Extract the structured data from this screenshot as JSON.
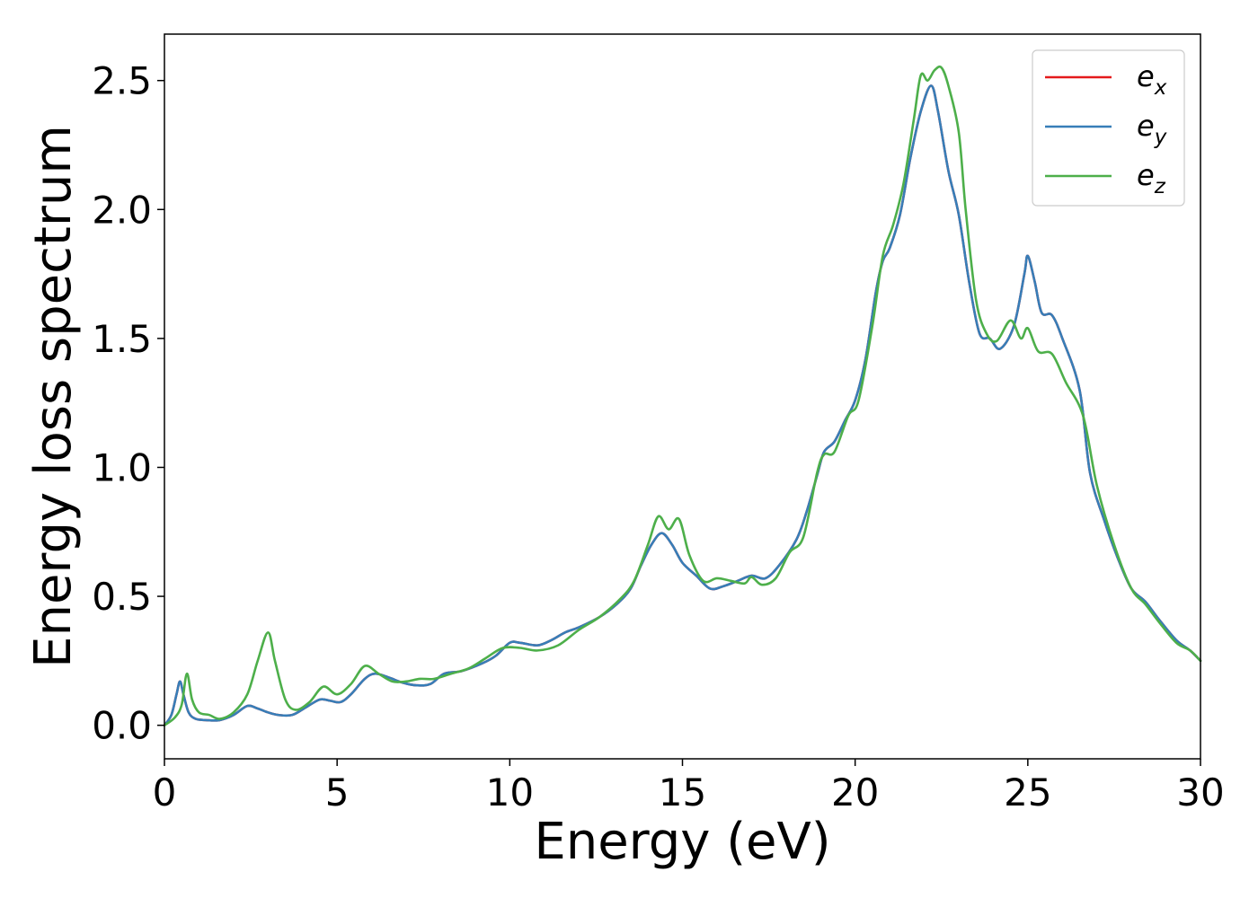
{
  "chart_data": {
    "type": "line",
    "xlabel": "Energy (eV)",
    "ylabel": "Energy loss spectrum",
    "xlim": [
      0,
      30
    ],
    "ylim": [
      -0.13,
      2.68
    ],
    "xticks": [
      0,
      5,
      10,
      15,
      20,
      25,
      30
    ],
    "yticks": [
      0.0,
      0.5,
      1.0,
      1.5,
      2.0,
      2.5
    ],
    "xtick_labels": [
      "0",
      "5",
      "10",
      "15",
      "20",
      "25",
      "30"
    ],
    "ytick_labels": [
      "0.0",
      "0.5",
      "1.0",
      "1.5",
      "2.0",
      "2.5"
    ],
    "grid": false,
    "legend_position": "top-right",
    "series": [
      {
        "name": "e_x",
        "legend_base": "e",
        "legend_sub": "x",
        "color": "#e41a1c",
        "points": [
          [
            0,
            0.0
          ],
          [
            0.2,
            0.04
          ],
          [
            0.35,
            0.12
          ],
          [
            0.45,
            0.17
          ],
          [
            0.55,
            0.12
          ],
          [
            0.7,
            0.05
          ],
          [
            0.9,
            0.025
          ],
          [
            1.2,
            0.02
          ],
          [
            1.6,
            0.02
          ],
          [
            2.0,
            0.04
          ],
          [
            2.4,
            0.075
          ],
          [
            2.7,
            0.065
          ],
          [
            3.0,
            0.05
          ],
          [
            3.3,
            0.04
          ],
          [
            3.7,
            0.04
          ],
          [
            4.1,
            0.07
          ],
          [
            4.5,
            0.1
          ],
          [
            4.8,
            0.095
          ],
          [
            5.1,
            0.09
          ],
          [
            5.4,
            0.12
          ],
          [
            5.8,
            0.18
          ],
          [
            6.1,
            0.2
          ],
          [
            6.5,
            0.185
          ],
          [
            6.9,
            0.165
          ],
          [
            7.3,
            0.155
          ],
          [
            7.7,
            0.16
          ],
          [
            8.1,
            0.2
          ],
          [
            8.6,
            0.21
          ],
          [
            9.2,
            0.24
          ],
          [
            9.6,
            0.27
          ],
          [
            10.0,
            0.32
          ],
          [
            10.3,
            0.32
          ],
          [
            10.8,
            0.31
          ],
          [
            11.2,
            0.33
          ],
          [
            11.6,
            0.36
          ],
          [
            12.0,
            0.38
          ],
          [
            12.6,
            0.42
          ],
          [
            13.1,
            0.47
          ],
          [
            13.5,
            0.53
          ],
          [
            13.8,
            0.62
          ],
          [
            14.1,
            0.7
          ],
          [
            14.4,
            0.745
          ],
          [
            14.7,
            0.7
          ],
          [
            15.0,
            0.63
          ],
          [
            15.4,
            0.58
          ],
          [
            15.8,
            0.53
          ],
          [
            16.2,
            0.54
          ],
          [
            16.6,
            0.56
          ],
          [
            17.0,
            0.58
          ],
          [
            17.4,
            0.57
          ],
          [
            17.8,
            0.62
          ],
          [
            18.3,
            0.72
          ],
          [
            18.6,
            0.83
          ],
          [
            18.9,
            0.97
          ],
          [
            19.1,
            1.06
          ],
          [
            19.4,
            1.1
          ],
          [
            19.7,
            1.18
          ],
          [
            20.0,
            1.26
          ],
          [
            20.3,
            1.42
          ],
          [
            20.6,
            1.68
          ],
          [
            20.8,
            1.8
          ],
          [
            21.0,
            1.85
          ],
          [
            21.3,
            1.98
          ],
          [
            21.6,
            2.2
          ],
          [
            21.9,
            2.38
          ],
          [
            22.2,
            2.48
          ],
          [
            22.4,
            2.38
          ],
          [
            22.7,
            2.15
          ],
          [
            23.0,
            1.98
          ],
          [
            23.3,
            1.72
          ],
          [
            23.6,
            1.52
          ],
          [
            23.9,
            1.5
          ],
          [
            24.2,
            1.46
          ],
          [
            24.6,
            1.55
          ],
          [
            24.9,
            1.75
          ],
          [
            25.0,
            1.82
          ],
          [
            25.2,
            1.72
          ],
          [
            25.4,
            1.6
          ],
          [
            25.7,
            1.59
          ],
          [
            26.0,
            1.5
          ],
          [
            26.5,
            1.3
          ],
          [
            26.8,
            0.98
          ],
          [
            27.2,
            0.8
          ],
          [
            27.6,
            0.65
          ],
          [
            28.0,
            0.53
          ],
          [
            28.4,
            0.48
          ],
          [
            28.8,
            0.41
          ],
          [
            29.3,
            0.33
          ],
          [
            29.7,
            0.29
          ],
          [
            30.0,
            0.25
          ]
        ]
      },
      {
        "name": "e_y",
        "legend_base": "e",
        "legend_sub": "y",
        "color": "#377eb8",
        "points": [
          [
            0,
            0.0
          ],
          [
            0.2,
            0.04
          ],
          [
            0.35,
            0.12
          ],
          [
            0.45,
            0.17
          ],
          [
            0.55,
            0.12
          ],
          [
            0.7,
            0.05
          ],
          [
            0.9,
            0.025
          ],
          [
            1.2,
            0.02
          ],
          [
            1.6,
            0.02
          ],
          [
            2.0,
            0.04
          ],
          [
            2.4,
            0.075
          ],
          [
            2.7,
            0.065
          ],
          [
            3.0,
            0.05
          ],
          [
            3.3,
            0.04
          ],
          [
            3.7,
            0.04
          ],
          [
            4.1,
            0.07
          ],
          [
            4.5,
            0.1
          ],
          [
            4.8,
            0.095
          ],
          [
            5.1,
            0.09
          ],
          [
            5.4,
            0.12
          ],
          [
            5.8,
            0.18
          ],
          [
            6.1,
            0.2
          ],
          [
            6.5,
            0.185
          ],
          [
            6.9,
            0.165
          ],
          [
            7.3,
            0.155
          ],
          [
            7.7,
            0.16
          ],
          [
            8.1,
            0.2
          ],
          [
            8.6,
            0.21
          ],
          [
            9.2,
            0.24
          ],
          [
            9.6,
            0.27
          ],
          [
            10.0,
            0.32
          ],
          [
            10.3,
            0.32
          ],
          [
            10.8,
            0.31
          ],
          [
            11.2,
            0.33
          ],
          [
            11.6,
            0.36
          ],
          [
            12.0,
            0.38
          ],
          [
            12.6,
            0.42
          ],
          [
            13.1,
            0.47
          ],
          [
            13.5,
            0.53
          ],
          [
            13.8,
            0.62
          ],
          [
            14.1,
            0.7
          ],
          [
            14.4,
            0.745
          ],
          [
            14.7,
            0.7
          ],
          [
            15.0,
            0.63
          ],
          [
            15.4,
            0.58
          ],
          [
            15.8,
            0.53
          ],
          [
            16.2,
            0.54
          ],
          [
            16.6,
            0.56
          ],
          [
            17.0,
            0.58
          ],
          [
            17.4,
            0.57
          ],
          [
            17.8,
            0.62
          ],
          [
            18.3,
            0.72
          ],
          [
            18.6,
            0.83
          ],
          [
            18.9,
            0.97
          ],
          [
            19.1,
            1.06
          ],
          [
            19.4,
            1.1
          ],
          [
            19.7,
            1.18
          ],
          [
            20.0,
            1.26
          ],
          [
            20.3,
            1.42
          ],
          [
            20.6,
            1.68
          ],
          [
            20.8,
            1.8
          ],
          [
            21.0,
            1.85
          ],
          [
            21.3,
            1.98
          ],
          [
            21.6,
            2.2
          ],
          [
            21.9,
            2.38
          ],
          [
            22.2,
            2.48
          ],
          [
            22.4,
            2.38
          ],
          [
            22.7,
            2.15
          ],
          [
            23.0,
            1.98
          ],
          [
            23.3,
            1.72
          ],
          [
            23.6,
            1.52
          ],
          [
            23.9,
            1.5
          ],
          [
            24.2,
            1.46
          ],
          [
            24.6,
            1.55
          ],
          [
            24.9,
            1.75
          ],
          [
            25.0,
            1.82
          ],
          [
            25.2,
            1.72
          ],
          [
            25.4,
            1.6
          ],
          [
            25.7,
            1.59
          ],
          [
            26.0,
            1.5
          ],
          [
            26.5,
            1.3
          ],
          [
            26.8,
            0.98
          ],
          [
            27.2,
            0.8
          ],
          [
            27.6,
            0.65
          ],
          [
            28.0,
            0.53
          ],
          [
            28.4,
            0.48
          ],
          [
            28.8,
            0.41
          ],
          [
            29.3,
            0.33
          ],
          [
            29.7,
            0.29
          ],
          [
            30.0,
            0.25
          ]
        ]
      },
      {
        "name": "e_z",
        "legend_base": "e",
        "legend_sub": "z",
        "color": "#4daf4a",
        "points": [
          [
            0,
            0.0
          ],
          [
            0.3,
            0.03
          ],
          [
            0.5,
            0.08
          ],
          [
            0.65,
            0.2
          ],
          [
            0.8,
            0.1
          ],
          [
            1.0,
            0.05
          ],
          [
            1.3,
            0.04
          ],
          [
            1.6,
            0.025
          ],
          [
            2.0,
            0.05
          ],
          [
            2.4,
            0.12
          ],
          [
            2.7,
            0.25
          ],
          [
            3.0,
            0.36
          ],
          [
            3.2,
            0.25
          ],
          [
            3.5,
            0.1
          ],
          [
            3.8,
            0.06
          ],
          [
            4.2,
            0.09
          ],
          [
            4.6,
            0.15
          ],
          [
            5.0,
            0.12
          ],
          [
            5.4,
            0.16
          ],
          [
            5.8,
            0.23
          ],
          [
            6.2,
            0.2
          ],
          [
            6.6,
            0.17
          ],
          [
            7.0,
            0.17
          ],
          [
            7.4,
            0.18
          ],
          [
            7.8,
            0.18
          ],
          [
            8.3,
            0.2
          ],
          [
            8.8,
            0.22
          ],
          [
            9.3,
            0.26
          ],
          [
            9.8,
            0.3
          ],
          [
            10.3,
            0.3
          ],
          [
            10.8,
            0.29
          ],
          [
            11.4,
            0.31
          ],
          [
            12.0,
            0.37
          ],
          [
            12.6,
            0.42
          ],
          [
            13.2,
            0.49
          ],
          [
            13.6,
            0.56
          ],
          [
            14.0,
            0.7
          ],
          [
            14.3,
            0.81
          ],
          [
            14.6,
            0.76
          ],
          [
            14.9,
            0.8
          ],
          [
            15.2,
            0.66
          ],
          [
            15.6,
            0.56
          ],
          [
            16.0,
            0.57
          ],
          [
            16.4,
            0.56
          ],
          [
            16.8,
            0.55
          ],
          [
            17.0,
            0.575
          ],
          [
            17.3,
            0.545
          ],
          [
            17.7,
            0.57
          ],
          [
            18.1,
            0.67
          ],
          [
            18.5,
            0.73
          ],
          [
            18.9,
            0.98
          ],
          [
            19.1,
            1.05
          ],
          [
            19.4,
            1.06
          ],
          [
            19.8,
            1.2
          ],
          [
            20.1,
            1.26
          ],
          [
            20.5,
            1.55
          ],
          [
            20.8,
            1.82
          ],
          [
            21.1,
            1.94
          ],
          [
            21.4,
            2.1
          ],
          [
            21.7,
            2.35
          ],
          [
            21.9,
            2.52
          ],
          [
            22.1,
            2.5
          ],
          [
            22.3,
            2.54
          ],
          [
            22.5,
            2.55
          ],
          [
            22.7,
            2.48
          ],
          [
            23.0,
            2.3
          ],
          [
            23.2,
            2.0
          ],
          [
            23.5,
            1.65
          ],
          [
            23.8,
            1.52
          ],
          [
            24.1,
            1.49
          ],
          [
            24.5,
            1.57
          ],
          [
            24.8,
            1.5
          ],
          [
            25.0,
            1.54
          ],
          [
            25.3,
            1.45
          ],
          [
            25.7,
            1.44
          ],
          [
            26.1,
            1.33
          ],
          [
            26.6,
            1.2
          ],
          [
            27.0,
            0.93
          ],
          [
            27.5,
            0.7
          ],
          [
            28.0,
            0.53
          ],
          [
            28.4,
            0.47
          ],
          [
            28.8,
            0.4
          ],
          [
            29.3,
            0.32
          ],
          [
            29.7,
            0.29
          ],
          [
            30.0,
            0.25
          ]
        ]
      }
    ]
  }
}
